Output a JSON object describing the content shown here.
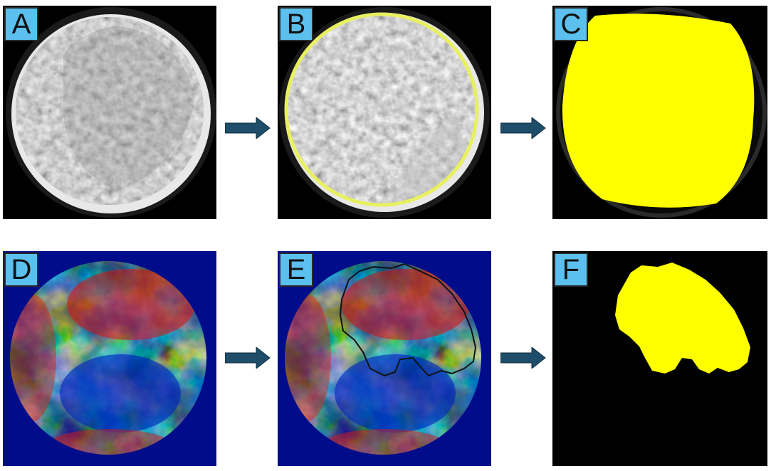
{
  "panels": [
    {
      "id": "A",
      "label": "A"
    },
    {
      "id": "B",
      "label": "B"
    },
    {
      "id": "C",
      "label": "C"
    },
    {
      "id": "D",
      "label": "D"
    },
    {
      "id": "E",
      "label": "E"
    },
    {
      "id": "F",
      "label": "F"
    }
  ],
  "colors": {
    "label_bg": "#5bc0ee",
    "arrow": "#1f4e6b",
    "mask_yellow": "#ffff00",
    "outline_yellow": "#e8f060",
    "heatmap_bg": "#000c8a"
  },
  "icons": {
    "arrow": "right-arrow-icon"
  }
}
